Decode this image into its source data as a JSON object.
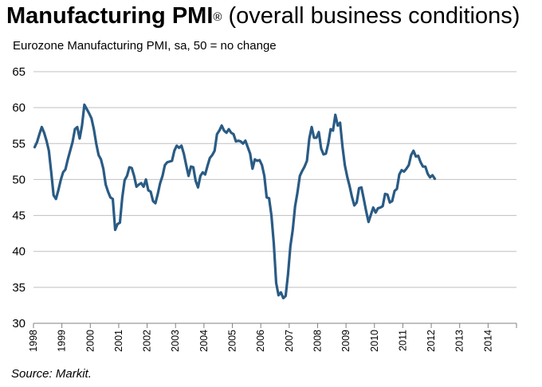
{
  "header": {
    "title_bold": "Manufacturing PMI",
    "title_mark": "®",
    "title_rest": " (overall business conditions)"
  },
  "colors": {
    "line": "#2a5b84",
    "grid": "#bfbfbf",
    "axis": "#808080"
  },
  "chart_data": {
    "type": "line",
    "title": "Manufacturing PMI® (overall business conditions)",
    "subtitle": "Eurozone Manufacturing PMI, sa, 50 = no change",
    "source": "Source: Markit.",
    "xlabel": "",
    "ylabel": "",
    "ylim": [
      30,
      65
    ],
    "yticks": [
      30,
      35,
      40,
      45,
      50,
      55,
      60,
      65
    ],
    "x_tick_labels": [
      "1998",
      "1999",
      "2000",
      "2001",
      "2002",
      "2003",
      "2004",
      "2005",
      "2006",
      "2007",
      "2008",
      "2009",
      "2010",
      "2011",
      "2012",
      "2013",
      "2014"
    ],
    "grid": "horizontal",
    "series": [
      {
        "name": "Eurozone Manufacturing PMI",
        "x_start": "1998-01",
        "frequency": "monthly",
        "values": [
          54.5,
          55.2,
          56.3,
          57.3,
          56.5,
          55.4,
          54.0,
          51.0,
          47.8,
          47.3,
          48.5,
          49.9,
          51.0,
          51.4,
          52.8,
          54.0,
          55.2,
          57.0,
          57.3,
          55.7,
          57.5,
          60.4,
          59.8,
          59.2,
          58.5,
          57.0,
          55.0,
          53.4,
          52.8,
          51.5,
          49.3,
          48.3,
          47.5,
          47.3,
          43.0,
          43.8,
          44.0,
          47.5,
          49.9,
          50.5,
          51.7,
          51.6,
          50.5,
          49.0,
          49.3,
          49.5,
          49.0,
          50.0,
          48.5,
          48.3,
          47.0,
          46.7,
          48.0,
          49.5,
          50.5,
          52.0,
          52.4,
          52.5,
          52.6,
          54.0,
          54.7,
          54.4,
          54.7,
          53.6,
          52.0,
          50.5,
          51.8,
          51.7,
          49.8,
          48.9,
          50.5,
          51.0,
          50.7,
          51.9,
          53.0,
          53.4,
          54.0,
          56.3,
          56.8,
          57.5,
          56.8,
          56.5,
          57.0,
          56.5,
          56.3,
          55.3,
          55.4,
          55.3,
          55.0,
          55.4,
          54.5,
          53.6,
          51.5,
          52.8,
          52.6,
          52.7,
          52.0,
          50.5,
          47.5,
          47.4,
          45.0,
          41.1,
          35.6,
          33.9,
          34.3,
          33.5,
          33.8,
          36.8,
          40.7,
          43.0,
          46.3,
          48.2,
          50.5,
          51.2,
          51.8,
          52.6,
          55.7,
          57.3,
          55.8,
          55.8,
          56.6,
          54.3,
          53.5,
          53.6,
          55.0,
          57.0,
          56.8,
          59.0,
          57.5,
          57.9,
          54.6,
          52.0,
          50.4,
          49.1,
          47.6,
          46.4,
          46.8,
          48.8,
          48.9,
          47.3,
          45.6,
          44.1,
          45.1,
          46.1,
          45.4,
          46.0,
          46.1,
          46.3,
          48.0,
          47.9,
          46.8,
          47.0,
          48.4,
          48.7,
          50.7,
          51.3,
          51.1,
          51.5,
          52.0,
          53.4,
          54.0,
          53.2,
          53.3,
          52.4,
          51.8,
          51.8,
          50.8,
          50.3,
          50.6,
          50.1
        ]
      }
    ]
  }
}
